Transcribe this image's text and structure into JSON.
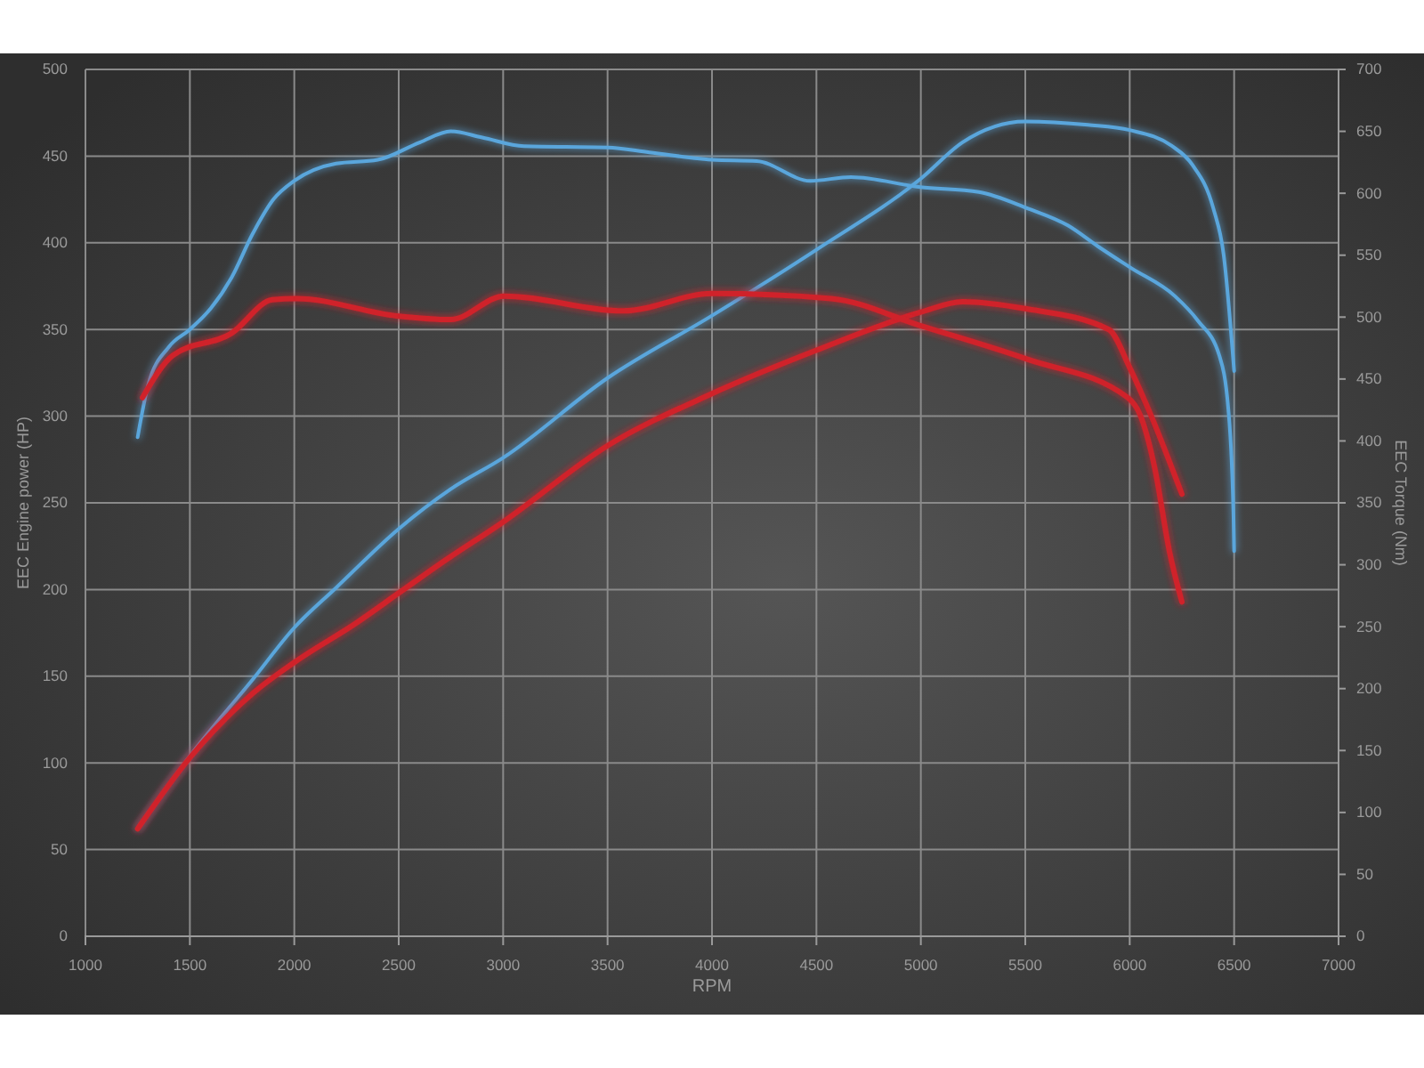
{
  "chart_data": {
    "type": "line",
    "xlabel": "RPM",
    "ylabel": "EEC Engine power (HP)",
    "y2label": "EEC Torque (Nm)",
    "xlim": [
      1000,
      7000
    ],
    "xticks": [
      1000,
      1500,
      2000,
      2500,
      3000,
      3500,
      4000,
      4500,
      5000,
      5500,
      6000,
      6500,
      7000
    ],
    "ylim": [
      0,
      500
    ],
    "yticks": [
      0,
      50,
      100,
      150,
      200,
      250,
      300,
      350,
      400,
      450,
      500
    ],
    "y2lim": [
      0,
      700
    ],
    "y2ticks": [
      0,
      50,
      100,
      150,
      200,
      250,
      300,
      350,
      400,
      450,
      500,
      550,
      600,
      650,
      700
    ],
    "grid": true,
    "marker": "none",
    "line_style": "solid",
    "series": [
      {
        "color": "#5aa6dc",
        "axis": "y",
        "x": [
          1250,
          1500,
          1800,
          2000,
          2200,
          2500,
          2750,
          3000,
          3500,
          4000,
          4500,
          5000,
          5200,
          5500,
          5800,
          6000,
          6200,
          6300,
          6400,
          6450,
          6500
        ],
        "values": [
          62,
          104,
          148,
          178,
          201,
          235,
          258,
          276,
          322,
          358,
          396,
          437,
          458,
          470,
          468,
          465,
          456,
          445,
          420,
          393,
          326
        ]
      },
      {
        "color": "#5aa6dc",
        "axis": "y2",
        "x": [
          1250,
          1300,
          1400,
          1500,
          1600,
          1700,
          1800,
          1900,
          2000,
          2200,
          2400,
          2600,
          2750,
          2900,
          3100,
          3500,
          3700,
          4000,
          4214,
          4470,
          4665,
          4997,
          5278,
          5508,
          5704,
          5849,
          6003,
          6216,
          6327,
          6429,
          6472,
          6497,
          6500
        ],
        "values": [
          403,
          445,
          476,
          490,
          507,
          532,
          567,
          595,
          610,
          624,
          627,
          641,
          650,
          645,
          638,
          637,
          633,
          627,
          626,
          610,
          613,
          605,
          601,
          588,
          574,
          557,
          540,
          517,
          497,
          469,
          426,
          339,
          311
        ]
      },
      {
        "color": "#d0212b",
        "axis": "y",
        "x": [
          1250,
          1500,
          1800,
          2000,
          2300,
          2500,
          2700,
          3000,
          3500,
          4000,
          4500,
          5000,
          5200,
          5500,
          5900,
          6000,
          6100,
          6250
        ],
        "values": [
          62,
          103,
          140,
          158,
          181,
          198,
          215,
          239,
          283,
          313,
          338,
          360,
          366,
          362,
          350,
          328,
          301,
          255
        ]
      },
      {
        "color": "#d0212b",
        "axis": "y2",
        "x": [
          1273,
          1418,
          1700,
          1895,
          2010,
          2490,
          2750,
          3005,
          3575,
          4000,
          4570,
          5000,
          5510,
          5990,
          6050,
          6120,
          6190,
          6250
        ],
        "values": [
          435,
          469,
          487,
          514,
          515,
          501,
          498,
          517,
          505,
          519,
          515,
          493,
          466,
          435,
          421,
          378,
          311,
          270
        ]
      }
    ]
  }
}
